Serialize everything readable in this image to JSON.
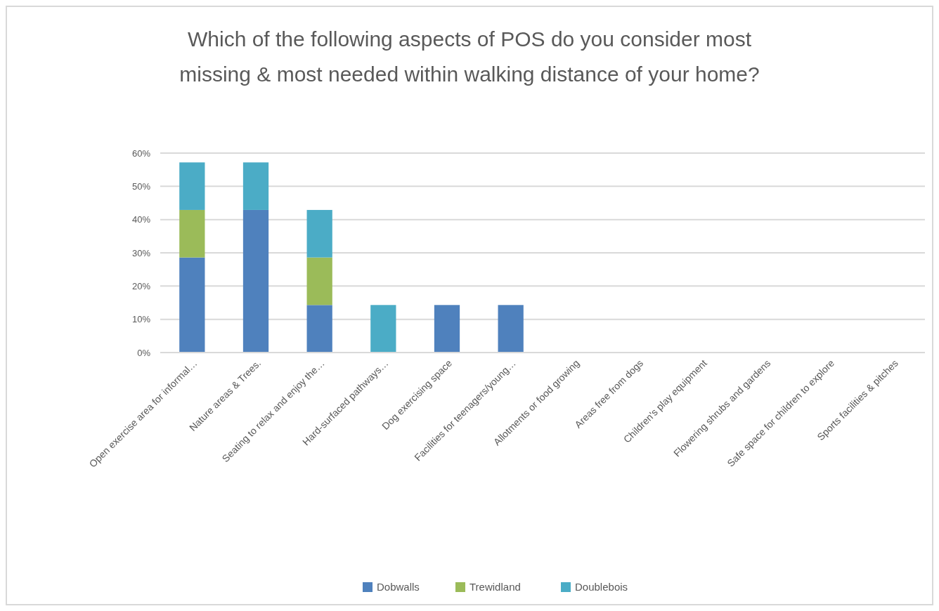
{
  "chart_data": {
    "type": "bar",
    "stacked": true,
    "title": "Which of the following aspects of POS do you consider most missing & most needed within walking distance of your home?",
    "categories": [
      "Open exercise area for informal…",
      "Nature areas & Trees.",
      "Seating to relax and enjoy the…",
      "Hard-surfaced pathways…",
      "Dog exercising space",
      "Facilities for teenagers/young…",
      "Allotments or food growing",
      "Areas free from dogs",
      "Children's play equipment",
      "Flowering shrubs and gardens",
      "Safe space for children to explore",
      "Sports facilities & pitches"
    ],
    "series": [
      {
        "name": "Dobwalls",
        "color": "#4f81bd",
        "values": [
          28.6,
          42.9,
          14.3,
          0,
          14.3,
          14.3,
          0,
          0,
          0,
          0,
          0,
          0
        ]
      },
      {
        "name": "Trewidland",
        "color": "#9bbb59",
        "values": [
          14.3,
          0,
          14.3,
          0,
          0,
          0,
          0,
          0,
          0,
          0,
          0,
          0
        ]
      },
      {
        "name": "Doublebois",
        "color": "#4bacc6",
        "values": [
          14.3,
          14.3,
          14.3,
          14.3,
          0,
          0,
          0,
          0,
          0,
          0,
          0,
          0
        ]
      }
    ],
    "ylim": [
      0,
      60
    ],
    "yticks": [
      {
        "value": 0,
        "label": "0%"
      },
      {
        "value": 10,
        "label": "10%"
      },
      {
        "value": 20,
        "label": "20%"
      },
      {
        "value": 30,
        "label": "30%"
      },
      {
        "value": 40,
        "label": "40%"
      },
      {
        "value": 50,
        "label": "50%"
      },
      {
        "value": 60,
        "label": "60%"
      }
    ],
    "grid": "y",
    "legend": "bottom"
  }
}
